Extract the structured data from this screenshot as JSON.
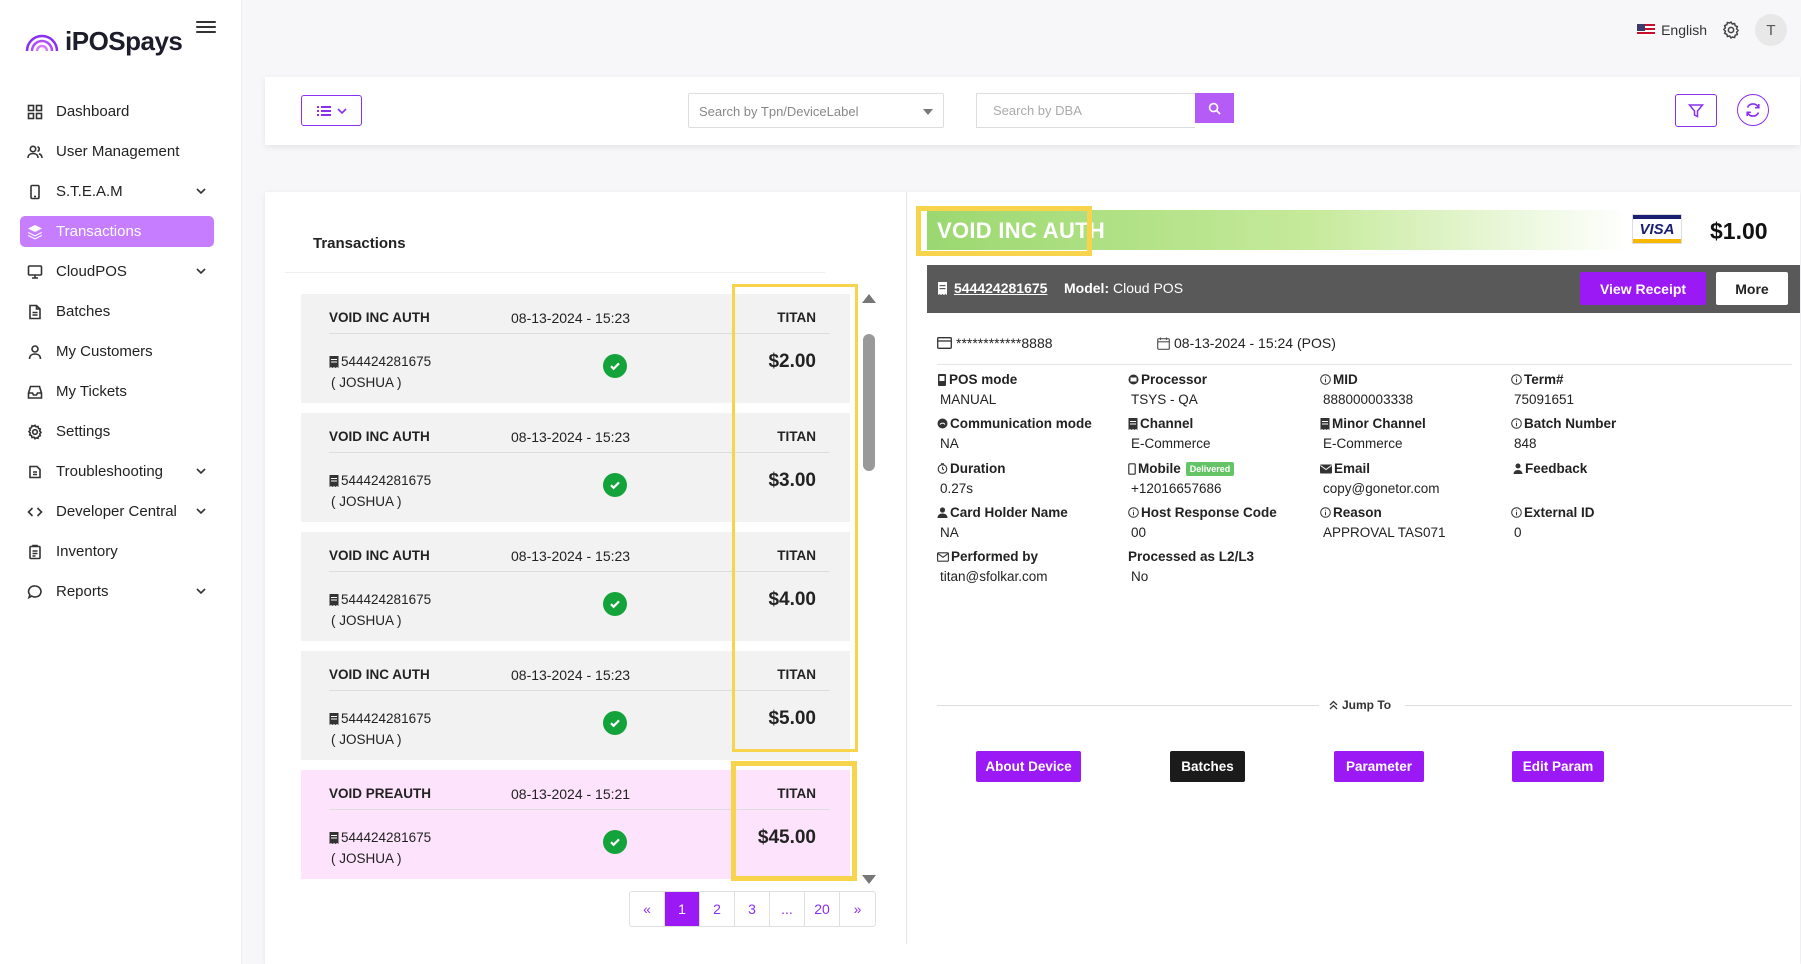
{
  "app": {
    "logo_text": "iPOSpays"
  },
  "topbar": {
    "language": "English",
    "avatar_initial": "T"
  },
  "sidebar": {
    "items": [
      {
        "label": "Dashboard",
        "icon": "grid-icon",
        "expandable": false,
        "active": false
      },
      {
        "label": "User Management",
        "icon": "users-icon",
        "expandable": false,
        "active": false
      },
      {
        "label": "S.T.E.A.M",
        "icon": "device-icon",
        "expandable": true,
        "active": false
      },
      {
        "label": "Transactions",
        "icon": "layers-icon",
        "expandable": false,
        "active": true
      },
      {
        "label": "CloudPOS",
        "icon": "monitor-icon",
        "expandable": true,
        "active": false
      },
      {
        "label": "Batches",
        "icon": "file-icon",
        "expandable": false,
        "active": false
      },
      {
        "label": "My Customers",
        "icon": "user-icon",
        "expandable": false,
        "active": false
      },
      {
        "label": "My Tickets",
        "icon": "inbox-icon",
        "expandable": false,
        "active": false
      },
      {
        "label": "Settings",
        "icon": "gear-icon",
        "expandable": false,
        "active": false
      },
      {
        "label": "Troubleshooting",
        "icon": "wrench-icon",
        "expandable": true,
        "active": false
      },
      {
        "label": "Developer Central",
        "icon": "code-icon",
        "expandable": true,
        "active": false
      },
      {
        "label": "Inventory",
        "icon": "clipboard-icon",
        "expandable": false,
        "active": false
      },
      {
        "label": "Reports",
        "icon": "chat-icon",
        "expandable": true,
        "active": false
      }
    ]
  },
  "filters": {
    "tpn_placeholder": "Search by Tpn/DeviceLabel",
    "dba_placeholder": "Search by DBA"
  },
  "transactions": {
    "title": "Transactions",
    "items": [
      {
        "type": "VOID INC AUTH",
        "date": "08-13-2024 - 15:23",
        "processor": "TITAN",
        "tpn": "544424281675",
        "customer": "( JOSHUA )",
        "amount": "$2.00",
        "selected": false
      },
      {
        "type": "VOID INC AUTH",
        "date": "08-13-2024 - 15:23",
        "processor": "TITAN",
        "tpn": "544424281675",
        "customer": "( JOSHUA )",
        "amount": "$3.00",
        "selected": false
      },
      {
        "type": "VOID INC AUTH",
        "date": "08-13-2024 - 15:23",
        "processor": "TITAN",
        "tpn": "544424281675",
        "customer": "( JOSHUA )",
        "amount": "$4.00",
        "selected": false
      },
      {
        "type": "VOID INC AUTH",
        "date": "08-13-2024 - 15:23",
        "processor": "TITAN",
        "tpn": "544424281675",
        "customer": "( JOSHUA )",
        "amount": "$5.00",
        "selected": false
      },
      {
        "type": "VOID PREAUTH",
        "date": "08-13-2024 - 15:21",
        "processor": "TITAN",
        "tpn": "544424281675",
        "customer": "( JOSHUA )",
        "amount": "$45.00",
        "selected": true
      }
    ],
    "pagination": [
      "«",
      "1",
      "2",
      "3",
      "...",
      "20",
      "»"
    ],
    "current_page": "1"
  },
  "detail": {
    "status": "VOID INC AUTH",
    "card_brand": "VISA",
    "amount": "$1.00",
    "tpn": "544424281675",
    "model_label": "Model:",
    "model_value": "Cloud POS",
    "view_receipt": "View Receipt",
    "more": "More",
    "card_mask": "************8888",
    "datetime": "08-13-2024 - 15:24 (POS)",
    "fields": [
      {
        "label": "POS mode",
        "value": "MANUAL",
        "icon": "device-small-icon"
      },
      {
        "label": "Processor",
        "value": "TSYS - QA",
        "icon": "cpu-icon"
      },
      {
        "label": "MID",
        "value": "888000003338",
        "icon": "info-icon"
      },
      {
        "label": "Term#",
        "value": "75091651",
        "icon": "info-icon"
      },
      {
        "label": "Communication mode",
        "value": "NA",
        "icon": "signal-icon"
      },
      {
        "label": "Channel",
        "value": "E-Commerce",
        "icon": "receipt-icon"
      },
      {
        "label": "Minor Channel",
        "value": "E-Commerce",
        "icon": "receipt-icon"
      },
      {
        "label": "Batch Number",
        "value": "848",
        "icon": "info-icon"
      },
      {
        "label": "Duration",
        "value": "0.27s",
        "icon": "timer-icon"
      },
      {
        "label": "Mobile",
        "value": "+12016657686",
        "icon": "phone-icon",
        "badge": "Delivered"
      },
      {
        "label": "Email",
        "value": "copy@gonetor.com",
        "icon": "mail-icon"
      },
      {
        "label": "Feedback",
        "value": "",
        "icon": "feedback-icon"
      },
      {
        "label": "Card Holder Name",
        "value": "NA",
        "icon": "person-icon"
      },
      {
        "label": "Host Response Code",
        "value": "00",
        "icon": "info-icon"
      },
      {
        "label": "Reason",
        "value": "APPROVAL TAS071",
        "icon": "info-icon"
      },
      {
        "label": "External ID",
        "value": "0",
        "icon": "info-icon"
      },
      {
        "label": "Performed by",
        "value": "titan@sfolkar.com",
        "icon": "envelope-icon"
      },
      {
        "label": "Processed as L2/L3",
        "value": "No",
        "icon": ""
      }
    ],
    "jump_to": "Jump To",
    "jump_buttons": [
      {
        "label": "About Device",
        "style": "purple"
      },
      {
        "label": "Batches",
        "style": "black"
      },
      {
        "label": "Parameter",
        "style": "purple"
      },
      {
        "label": "Edit Param",
        "style": "purple"
      }
    ]
  },
  "colors": {
    "brand_purple": "#9b19f5",
    "active_nav": "#c77dff",
    "highlight": "#f7d44c",
    "success": "#14a33a"
  }
}
